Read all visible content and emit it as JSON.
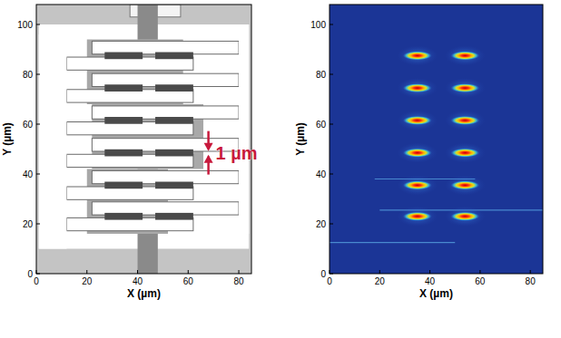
{
  "chart_data": [
    {
      "type": "image",
      "x_label": "X (µm)",
      "y_label": "Y (µm)",
      "xlim": [
        0,
        85
      ],
      "ylim": [
        0,
        108
      ],
      "xticks": [
        0,
        20,
        40,
        60,
        80
      ],
      "yticks": [
        0,
        20,
        40,
        60,
        80,
        100
      ],
      "annotations": [
        {
          "text": "1 µm",
          "x": 68,
          "y": 48.5
        }
      ]
    },
    {
      "type": "heatmap",
      "x_label": "X (µm)",
      "y_label": "Y (µm)",
      "xlim": [
        0,
        85
      ],
      "ylim": [
        0,
        108
      ],
      "xticks": [
        0,
        20,
        40,
        60,
        80
      ],
      "yticks": [
        0,
        20,
        40,
        60,
        80,
        100
      ],
      "spots": [
        {
          "x": 35,
          "y": 87.5
        },
        {
          "x": 54,
          "y": 87.5
        },
        {
          "x": 35,
          "y": 74.5
        },
        {
          "x": 54,
          "y": 74.5
        },
        {
          "x": 35,
          "y": 61.5
        },
        {
          "x": 54,
          "y": 61.5
        },
        {
          "x": 35,
          "y": 48.5
        },
        {
          "x": 54,
          "y": 48.5
        },
        {
          "x": 35,
          "y": 35.5
        },
        {
          "x": 54,
          "y": 35.5
        },
        {
          "x": 35,
          "y": 23
        },
        {
          "x": 54,
          "y": 23
        }
      ],
      "streaks": [
        {
          "y": 12.5,
          "x": [
            0,
            50
          ]
        },
        {
          "y": 25.5,
          "x": [
            20,
            85
          ]
        },
        {
          "y": 38,
          "x": [
            18,
            58
          ]
        }
      ]
    }
  ]
}
